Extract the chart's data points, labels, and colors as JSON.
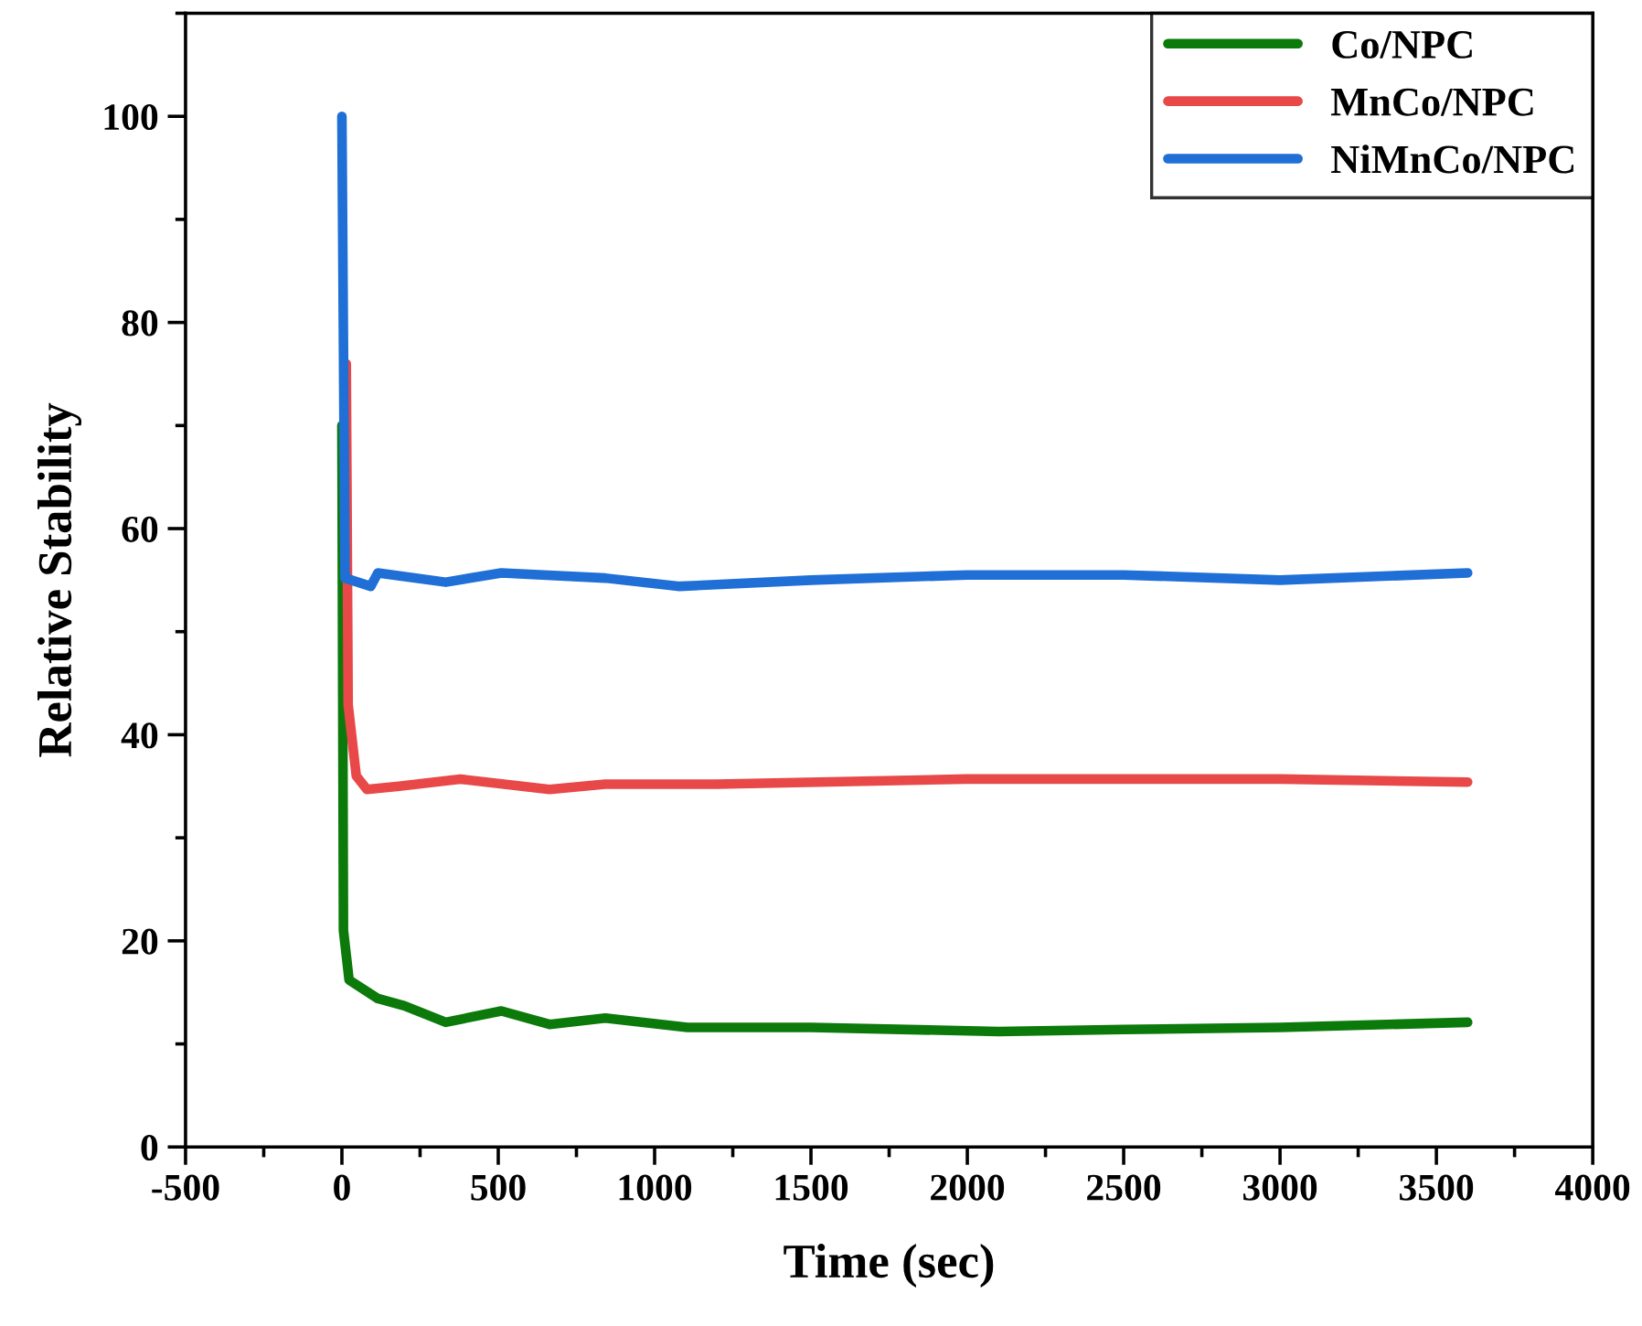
{
  "chart_data": {
    "type": "line",
    "xlabel": "Time (sec)",
    "ylabel": "Relative Stability",
    "xlim": [
      -500,
      4000
    ],
    "xticks": [
      -500,
      0,
      500,
      1000,
      1500,
      2000,
      2500,
      3000,
      3500,
      4000
    ],
    "ylim": [
      0,
      110
    ],
    "yticks": [
      0,
      20,
      40,
      60,
      80,
      100
    ],
    "grid": false,
    "legend": "top right",
    "line_style": "solid",
    "marker": "none",
    "series": [
      {
        "name": "Co/NPC",
        "color": "#0b7a0b",
        "x": [
          0,
          5,
          23,
          115,
          200,
          332,
          510,
          664,
          842,
          1105,
          1500,
          2100,
          2500,
          3000,
          3600
        ],
        "values": [
          70,
          21,
          16.2,
          14.4,
          13.7,
          12.1,
          13.2,
          11.9,
          12.5,
          11.6,
          11.6,
          11.2,
          11.4,
          11.6,
          12.1
        ]
      },
      {
        "name": "MnCo/NPC",
        "color": "#e84848",
        "x": [
          14,
          20,
          46,
          80,
          183,
          378,
          664,
          842,
          1200,
          2000,
          3000,
          3600
        ],
        "values": [
          76,
          42.9,
          36.0,
          34.7,
          35.0,
          35.7,
          34.7,
          35.2,
          35.2,
          35.7,
          35.7,
          35.4
        ]
      },
      {
        "name": "NiMnCo/NPC",
        "color": "#1f6fd6",
        "x": [
          0,
          10,
          92,
          115,
          332,
          510,
          842,
          1080,
          1500,
          2000,
          2500,
          3000,
          3600
        ],
        "values": [
          100,
          55.2,
          54.4,
          55.7,
          54.8,
          55.7,
          55.2,
          54.4,
          55.0,
          55.5,
          55.5,
          55.0,
          55.7
        ]
      }
    ]
  }
}
